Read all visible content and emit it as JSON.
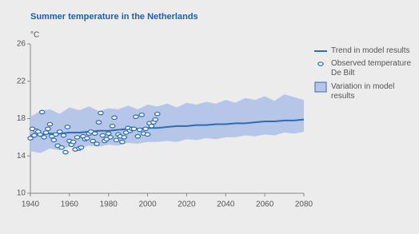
{
  "chart_data": {
    "type": "line",
    "title": "Summer temperature in the Netherlands",
    "y_label": "°C",
    "xlim": [
      1940,
      2080
    ],
    "xticks": [
      1940,
      1960,
      1980,
      2000,
      2020,
      2040,
      2060,
      2080
    ],
    "ylim": [
      10,
      26
    ],
    "yticks": [
      10,
      14,
      18,
      22,
      26
    ],
    "series": [
      {
        "name": "Trend in model results",
        "kind": "line",
        "color": "#2e6db4",
        "x": [
          1940,
          1945,
          1950,
          1955,
          1960,
          1965,
          1970,
          1975,
          1980,
          1985,
          1990,
          1995,
          2000,
          2005,
          2010,
          2015,
          2020,
          2025,
          2030,
          2035,
          2040,
          2045,
          2050,
          2055,
          2060,
          2065,
          2070,
          2075,
          2080
        ],
        "values": [
          16.2,
          16.3,
          16.4,
          16.4,
          16.5,
          16.5,
          16.6,
          16.7,
          16.7,
          16.8,
          16.9,
          16.9,
          17.0,
          17.0,
          17.1,
          17.2,
          17.2,
          17.3,
          17.3,
          17.4,
          17.4,
          17.5,
          17.5,
          17.6,
          17.7,
          17.7,
          17.8,
          17.8,
          17.9
        ]
      },
      {
        "name": "Observed temperature De Bilt",
        "kind": "scatter",
        "color": "#2e6db4",
        "x": [
          1940,
          1941,
          1942,
          1943,
          1944,
          1945,
          1946,
          1947,
          1948,
          1949,
          1950,
          1951,
          1952,
          1953,
          1954,
          1955,
          1956,
          1957,
          1958,
          1959,
          1960,
          1961,
          1962,
          1963,
          1964,
          1965,
          1966,
          1967,
          1968,
          1969,
          1970,
          1971,
          1972,
          1973,
          1974,
          1975,
          1976,
          1977,
          1978,
          1979,
          1980,
          1981,
          1982,
          1983,
          1984,
          1985,
          1986,
          1987,
          1988,
          1989,
          1990,
          1991,
          1992,
          1993,
          1994,
          1995,
          1996,
          1997,
          1998,
          1999,
          2000,
          2001,
          2002,
          2003,
          2004,
          2005
        ],
        "values": [
          15.9,
          16.9,
          16.2,
          16.7,
          16.6,
          16.3,
          18.7,
          16.0,
          16.5,
          16.9,
          17.4,
          16.1,
          15.7,
          16.3,
          15.1,
          16.6,
          14.9,
          16.2,
          14.4,
          17.1,
          15.6,
          15.2,
          15.5,
          14.7,
          16.0,
          14.8,
          14.9,
          16.1,
          15.8,
          15.9,
          16.4,
          16.6,
          15.6,
          16.4,
          15.3,
          17.6,
          18.6,
          16.2,
          15.6,
          15.8,
          16.4,
          16.0,
          17.2,
          18.1,
          15.7,
          16.3,
          16.1,
          15.5,
          16.0,
          16.5,
          17.0,
          16.7,
          16.9,
          16.9,
          18.2,
          16.1,
          16.8,
          18.4,
          16.4,
          16.9,
          16.3,
          17.5,
          17.2,
          17.6,
          17.9,
          18.5
        ]
      },
      {
        "name": "Variation in model results",
        "kind": "band",
        "color": "#b6c6e8",
        "x": [
          1940,
          1945,
          1950,
          1955,
          1960,
          1965,
          1970,
          1975,
          1980,
          1985,
          1990,
          1995,
          2000,
          2005,
          2010,
          2015,
          2020,
          2025,
          2030,
          2035,
          2040,
          2045,
          2050,
          2055,
          2060,
          2065,
          2070,
          2075,
          2080
        ],
        "upper": [
          18.2,
          18.8,
          19.0,
          18.5,
          19.2,
          18.9,
          19.3,
          18.8,
          19.1,
          19.0,
          19.4,
          19.0,
          19.5,
          19.3,
          19.6,
          19.2,
          19.7,
          19.5,
          19.8,
          19.6,
          20.0,
          19.7,
          20.2,
          20.0,
          20.4,
          19.9,
          20.6,
          20.3,
          20.0
        ],
        "lower": [
          14.5,
          14.3,
          14.8,
          14.6,
          15.0,
          14.8,
          15.1,
          15.0,
          15.2,
          15.1,
          15.4,
          15.3,
          15.5,
          15.5,
          15.6,
          15.5,
          15.8,
          15.7,
          15.9,
          15.8,
          16.0,
          16.0,
          16.2,
          16.1,
          16.3,
          16.2,
          16.5,
          16.4,
          16.6
        ]
      }
    ]
  }
}
